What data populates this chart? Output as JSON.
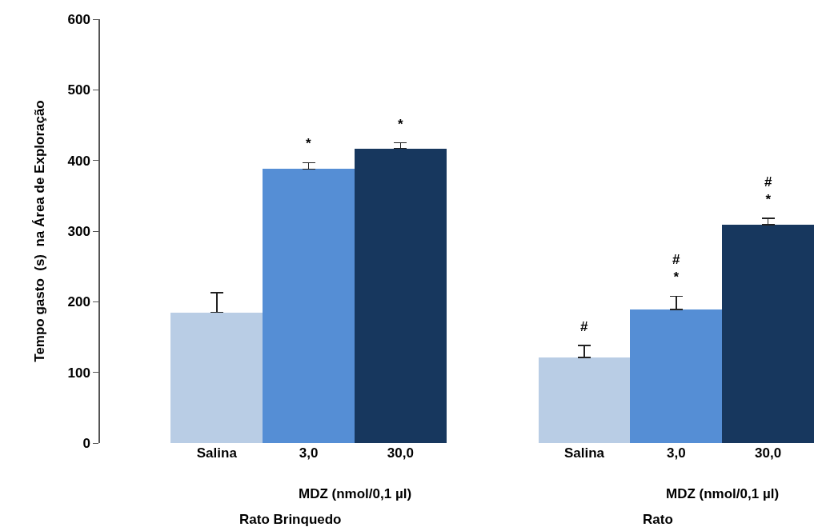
{
  "chart_data": {
    "type": "bar",
    "ylabel": "Tempo gasto  (s)  na Área de Exploração",
    "categories": [
      "Salina",
      "3,0",
      "30,0",
      null,
      "Salina",
      "3,0",
      "30,0"
    ],
    "values": [
      185,
      388,
      417,
      null,
      121,
      189,
      309
    ],
    "colors": [
      "#b9cde5",
      "#558ed5",
      "#17375e",
      "#ffffff",
      "#b9cde5",
      "#558ed5",
      "#17375e"
    ],
    "errors": [
      [
        185,
        213
      ],
      [
        388,
        397
      ],
      [
        417,
        425
      ],
      null,
      [
        121,
        138
      ],
      [
        189,
        208
      ],
      [
        309,
        318
      ]
    ],
    "value_labels": [
      null,
      "*",
      "*",
      null,
      "#",
      "#\n*",
      "#\n*"
    ],
    "annotations": [
      "MDZ (nmol/0,1 µl)",
      "Rato Brinquedo",
      "MDZ (nmol/0,1 µl)",
      "Rato"
    ],
    "ylim": [
      0,
      600
    ],
    "yticks": [
      0,
      100,
      200,
      300,
      400,
      500,
      600
    ],
    "grid": false
  }
}
